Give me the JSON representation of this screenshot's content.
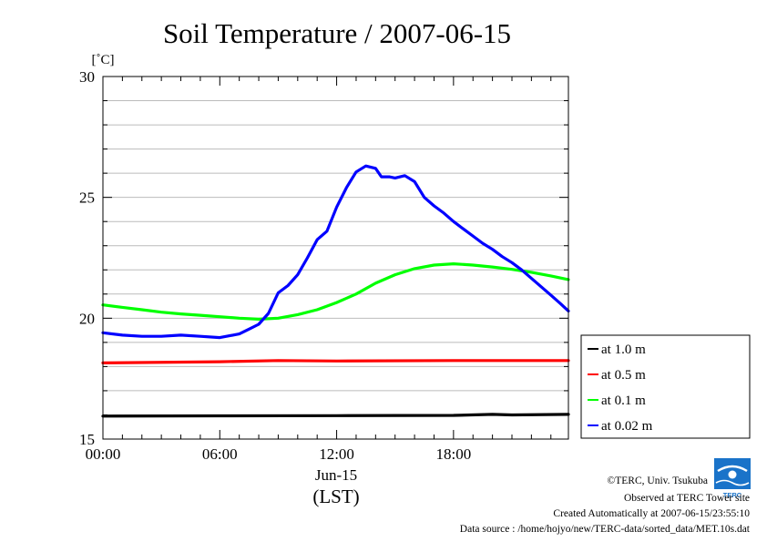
{
  "chart_data": {
    "type": "line",
    "title": "Soil Temperature / 2007-06-15",
    "ylabel": "[˚C]",
    "xlabel": "(LST)",
    "date_label": "Jun-15",
    "ylim": [
      15,
      30
    ],
    "xlim": [
      0,
      23.9
    ],
    "y_ticks": [
      15,
      20,
      25,
      30
    ],
    "y_minor": [
      16,
      17,
      18,
      19,
      21,
      22,
      23,
      24,
      26,
      27,
      28,
      29
    ],
    "x_ticks": [
      {
        "x": 0,
        "label": "00:00"
      },
      {
        "x": 6,
        "label": "06:00"
      },
      {
        "x": 12,
        "label": "12:00"
      },
      {
        "x": 18,
        "label": "18:00"
      }
    ],
    "grid": true,
    "legend_position": "right",
    "series": [
      {
        "name": "at 1.0 m",
        "color": "#000000",
        "x": [
          0,
          6,
          12,
          18,
          20,
          21,
          23.9
        ],
        "y": [
          15.95,
          15.96,
          15.97,
          15.98,
          16.02,
          16.0,
          16.02
        ]
      },
      {
        "name": "at 0.5 m",
        "color": "#ff0000",
        "x": [
          0,
          6,
          9,
          12,
          18,
          23.9
        ],
        "y": [
          18.15,
          18.2,
          18.25,
          18.23,
          18.25,
          18.25
        ]
      },
      {
        "name": "at 0.1 m",
        "color": "#00ff00",
        "x": [
          0,
          1,
          2,
          3,
          4,
          5,
          6,
          7,
          8,
          9,
          10,
          11,
          12,
          13,
          14,
          15,
          16,
          17,
          18,
          19,
          20,
          21,
          22,
          23,
          23.9
        ],
        "y": [
          20.55,
          20.45,
          20.35,
          20.25,
          20.18,
          20.12,
          20.06,
          20.0,
          19.96,
          20.0,
          20.15,
          20.35,
          20.65,
          21.0,
          21.45,
          21.8,
          22.05,
          22.2,
          22.25,
          22.2,
          22.12,
          22.02,
          21.9,
          21.75,
          21.6
        ]
      },
      {
        "name": "at 0.02 m",
        "color": "#0000ff",
        "x": [
          0,
          1,
          2,
          3,
          4,
          5,
          6,
          7,
          7.5,
          8,
          8.5,
          9,
          9.5,
          10,
          10.5,
          11,
          11.5,
          12,
          12.5,
          13,
          13.5,
          14,
          14.3,
          14.7,
          15,
          15.5,
          16,
          16.5,
          17,
          17.5,
          18,
          18.5,
          19,
          19.5,
          20,
          20.5,
          21,
          21.5,
          22,
          22.5,
          23,
          23.5,
          23.9
        ],
        "y": [
          19.4,
          19.3,
          19.25,
          19.25,
          19.3,
          19.25,
          19.2,
          19.35,
          19.55,
          19.75,
          20.2,
          21.05,
          21.35,
          21.8,
          22.5,
          23.25,
          23.6,
          24.6,
          25.4,
          26.05,
          26.3,
          26.2,
          25.85,
          25.85,
          25.8,
          25.9,
          25.65,
          25.0,
          24.65,
          24.35,
          24.0,
          23.7,
          23.4,
          23.1,
          22.85,
          22.55,
          22.3,
          22.0,
          21.65,
          21.3,
          20.95,
          20.6,
          20.3
        ]
      }
    ]
  },
  "credits": {
    "copyright": "©TERC, Univ. Tsukuba",
    "site": "Observed at TERC Tower site",
    "created": "Created Automatically at 2007-06-15/23:55:10",
    "source": "Data source : /home/hojyo/new/TERC-data/sorted_data/MET.10s.dat",
    "logo_text": "TERC"
  }
}
